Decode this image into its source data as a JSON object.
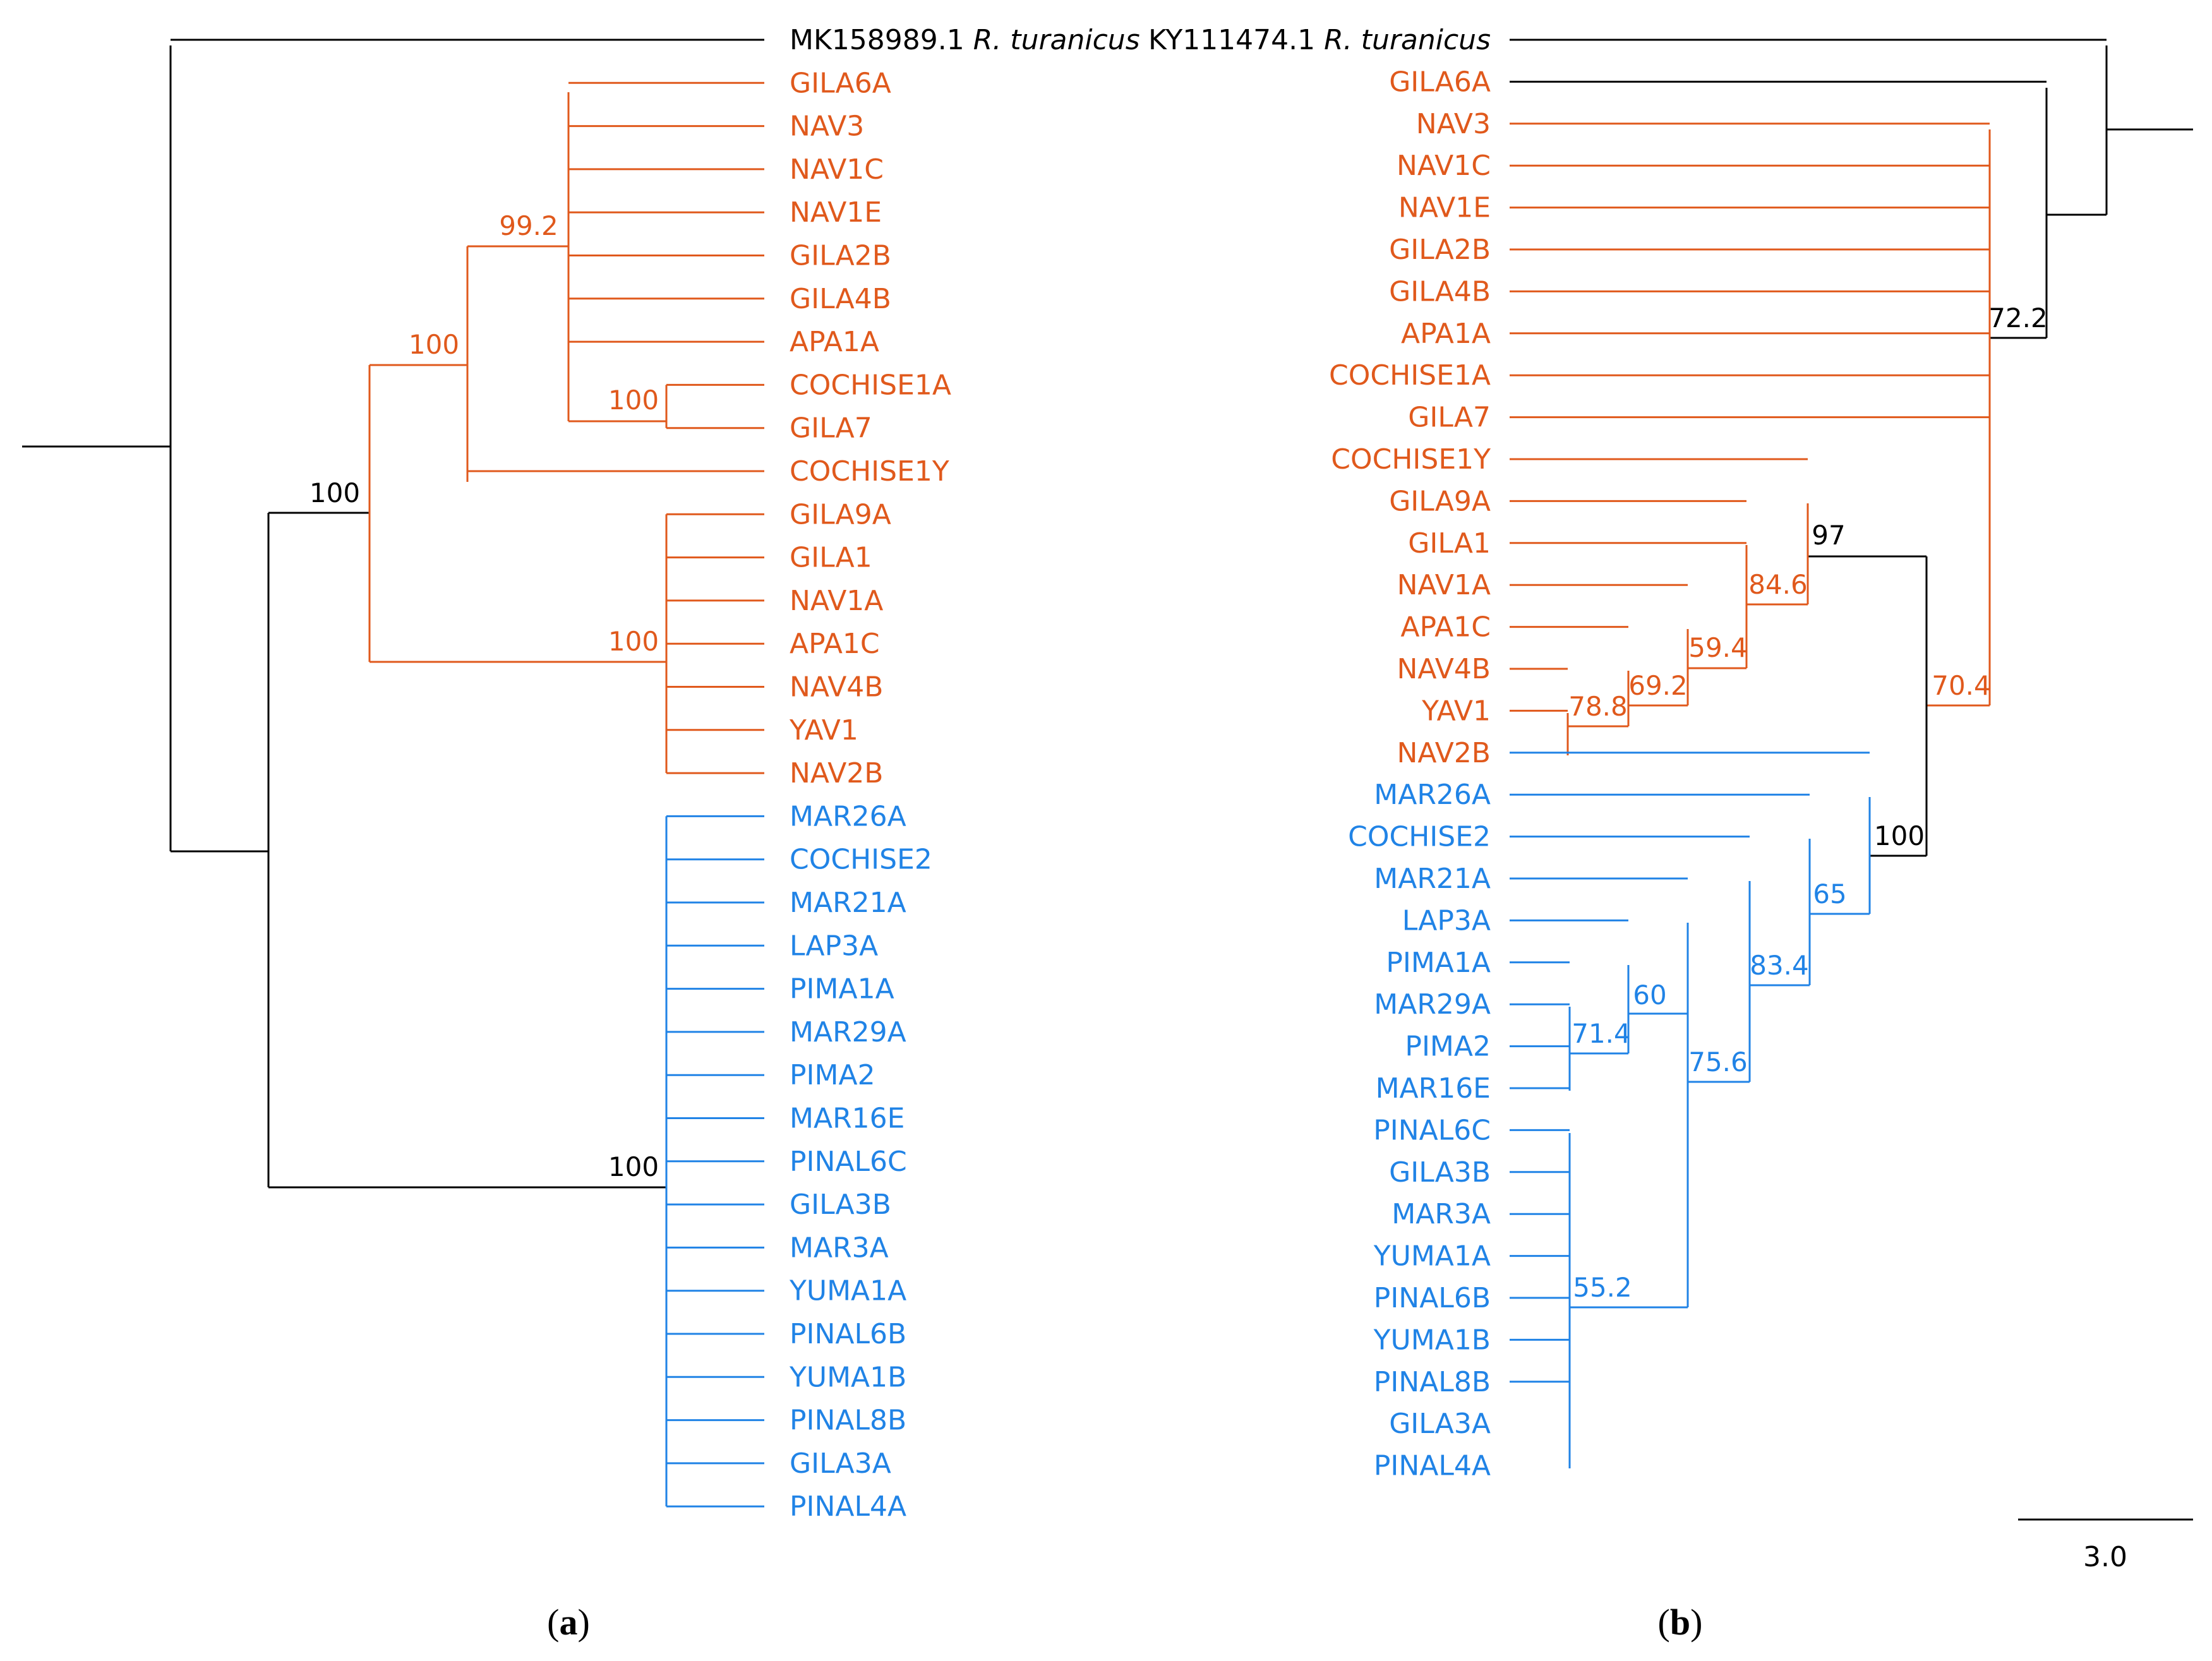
{
  "colors": {
    "outgroup": "#000000",
    "clade_orange": "#e0591c",
    "clade_blue": "#2083e6"
  },
  "panels": {
    "a": "a",
    "b": "b"
  },
  "scale_bar": {
    "label": "3.0"
  },
  "tree_a": {
    "leaves": [
      {
        "name": "MK158989.1",
        "suffix": "R. turanicus",
        "group": "black"
      },
      {
        "name": "GILA6A",
        "group": "orange"
      },
      {
        "name": "NAV3",
        "group": "orange"
      },
      {
        "name": "NAV1C",
        "group": "orange"
      },
      {
        "name": "NAV1E",
        "group": "orange"
      },
      {
        "name": "GILA2B",
        "group": "orange"
      },
      {
        "name": "GILA4B",
        "group": "orange"
      },
      {
        "name": "APA1A",
        "group": "orange"
      },
      {
        "name": "COCHISE1A",
        "group": "orange"
      },
      {
        "name": "GILA7",
        "group": "orange"
      },
      {
        "name": "COCHISE1Y",
        "group": "orange"
      },
      {
        "name": "GILA9A",
        "group": "orange"
      },
      {
        "name": "GILA1",
        "group": "orange"
      },
      {
        "name": "NAV1A",
        "group": "orange"
      },
      {
        "name": "APA1C",
        "group": "orange"
      },
      {
        "name": "NAV4B",
        "group": "orange"
      },
      {
        "name": "YAV1",
        "group": "orange"
      },
      {
        "name": "NAV2B",
        "group": "orange"
      },
      {
        "name": "MAR26A",
        "group": "blue"
      },
      {
        "name": "COCHISE2",
        "group": "blue"
      },
      {
        "name": "MAR21A",
        "group": "blue"
      },
      {
        "name": "LAP3A",
        "group": "blue"
      },
      {
        "name": "PIMA1A",
        "group": "blue"
      },
      {
        "name": "MAR29A",
        "group": "blue"
      },
      {
        "name": "PIMA2",
        "group": "blue"
      },
      {
        "name": "MAR16E",
        "group": "blue"
      },
      {
        "name": "PINAL6C",
        "group": "blue"
      },
      {
        "name": "GILA3B",
        "group": "blue"
      },
      {
        "name": "MAR3A",
        "group": "blue"
      },
      {
        "name": "YUMA1A",
        "group": "blue"
      },
      {
        "name": "PINAL6B",
        "group": "blue"
      },
      {
        "name": "YUMA1B",
        "group": "blue"
      },
      {
        "name": "PINAL8B",
        "group": "blue"
      },
      {
        "name": "GILA3A",
        "group": "blue"
      },
      {
        "name": "PINAL4A",
        "group": "blue"
      }
    ],
    "supports": [
      "99.2",
      "100",
      "100",
      "100",
      "100",
      "100"
    ]
  },
  "tree_b": {
    "leaves": [
      {
        "name": "KY111474.1",
        "suffix": "R. turanicus",
        "group": "black"
      },
      {
        "name": "GILA6A",
        "group": "orange"
      },
      {
        "name": "NAV3",
        "group": "orange"
      },
      {
        "name": "NAV1C",
        "group": "orange"
      },
      {
        "name": "NAV1E",
        "group": "orange"
      },
      {
        "name": "GILA2B",
        "group": "orange"
      },
      {
        "name": "GILA4B",
        "group": "orange"
      },
      {
        "name": "APA1A",
        "group": "orange"
      },
      {
        "name": "COCHISE1A",
        "group": "orange"
      },
      {
        "name": "GILA7",
        "group": "orange"
      },
      {
        "name": "COCHISE1Y",
        "group": "orange"
      },
      {
        "name": "GILA9A",
        "group": "orange"
      },
      {
        "name": "GILA1",
        "group": "orange"
      },
      {
        "name": "NAV1A",
        "group": "orange"
      },
      {
        "name": "APA1C",
        "group": "orange"
      },
      {
        "name": "NAV4B",
        "group": "orange"
      },
      {
        "name": "YAV1",
        "group": "orange"
      },
      {
        "name": "NAV2B",
        "group": "orange"
      },
      {
        "name": "MAR26A",
        "group": "blue"
      },
      {
        "name": "COCHISE2",
        "group": "blue"
      },
      {
        "name": "MAR21A",
        "group": "blue"
      },
      {
        "name": "LAP3A",
        "group": "blue"
      },
      {
        "name": "PIMA1A",
        "group": "blue"
      },
      {
        "name": "MAR29A",
        "group": "blue"
      },
      {
        "name": "PIMA2",
        "group": "blue"
      },
      {
        "name": "MAR16E",
        "group": "blue"
      },
      {
        "name": "PINAL6C",
        "group": "blue"
      },
      {
        "name": "GILA3B",
        "group": "blue"
      },
      {
        "name": "MAR3A",
        "group": "blue"
      },
      {
        "name": "YUMA1A",
        "group": "blue"
      },
      {
        "name": "PINAL6B",
        "group": "blue"
      },
      {
        "name": "YUMA1B",
        "group": "blue"
      },
      {
        "name": "PINAL8B",
        "group": "blue"
      },
      {
        "name": "GILA3A",
        "group": "blue"
      },
      {
        "name": "PINAL4A",
        "group": "blue"
      }
    ],
    "supports": [
      "72.2",
      "97",
      "84.6",
      "59.4",
      "69.2",
      "78.8",
      "70.4",
      "100",
      "65",
      "83.4",
      "60",
      "71.4",
      "75.6",
      "55.2"
    ]
  }
}
